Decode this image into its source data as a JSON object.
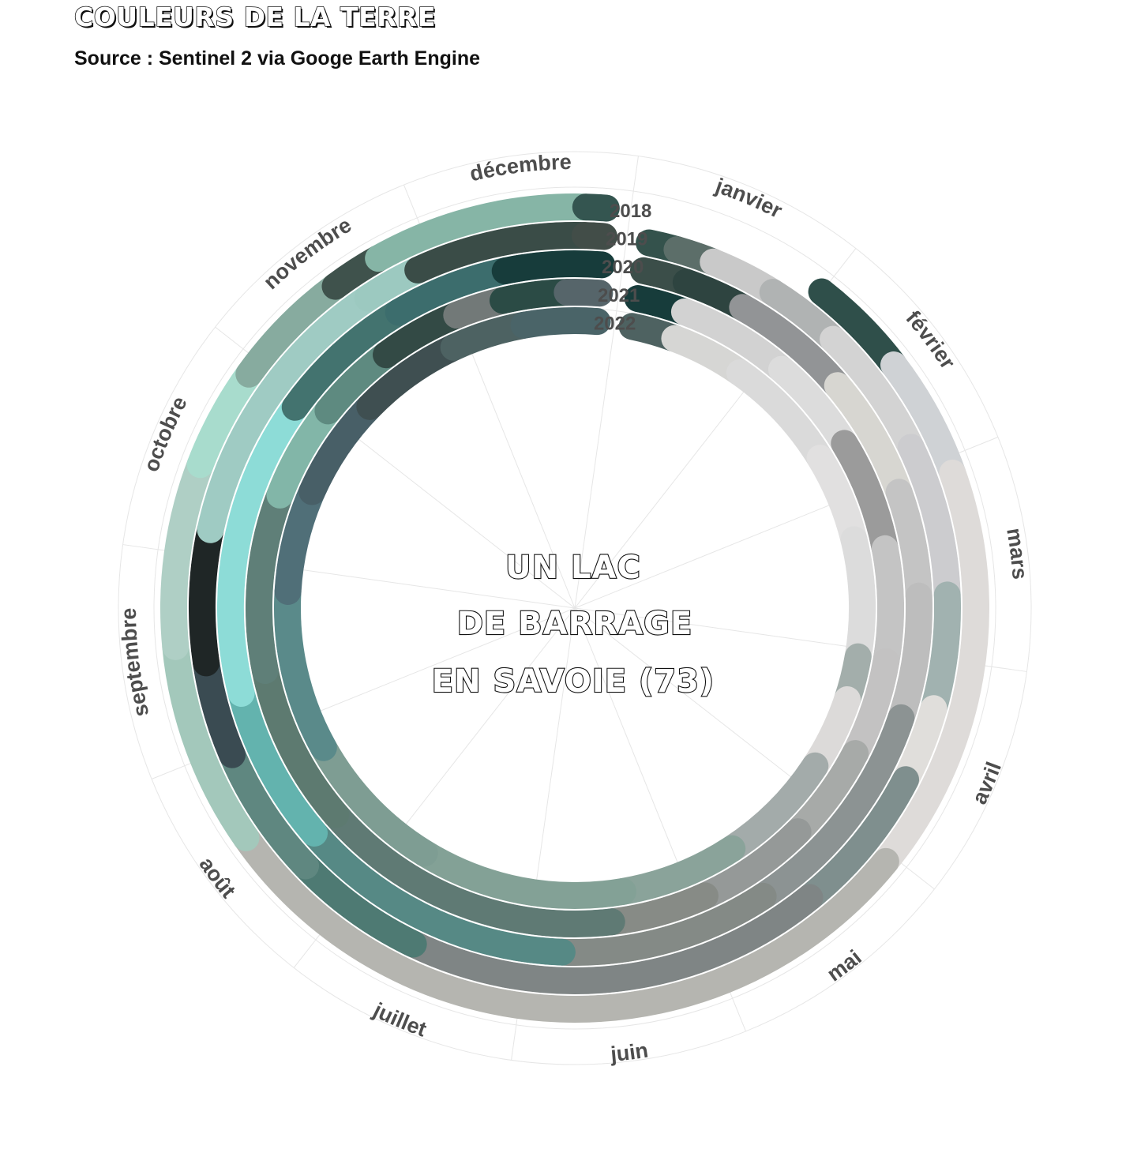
{
  "header": {
    "title": "COULEURS DE LA TERRE",
    "subtitle": "Source : Sentinel 2 via Googe Earth Engine"
  },
  "center_text": [
    "UN LAC",
    "DE BARRAGE",
    "EN SAVOIE (73)"
  ],
  "chart_data": {
    "type": "radial-timeline",
    "months": [
      "janvier",
      "février",
      "mars",
      "avril",
      "mai",
      "juin",
      "juillet",
      "août",
      "septembre",
      "octobre",
      "novembre",
      "décembre"
    ],
    "grid": true,
    "series": [
      {
        "name": "2018",
        "segments": [
          {
            "start": 0.9,
            "end": 1.4,
            "color": "#2f4f4a"
          },
          {
            "start": 1.4,
            "end": 2.0,
            "color": "#cfd2d5"
          },
          {
            "start": 2.0,
            "end": 4.0,
            "color": "#dedbd9"
          },
          {
            "start": 4.0,
            "end": 7.6,
            "color": "#b5b5b0"
          },
          {
            "start": 7.6,
            "end": 8.6,
            "color": "#a3c8bb"
          },
          {
            "start": 8.6,
            "end": 9.5,
            "color": "#afcfc5"
          },
          {
            "start": 9.5,
            "end": 10.0,
            "color": "#a8dccd"
          },
          {
            "start": 10.0,
            "end": 10.6,
            "color": "#87ab9f"
          },
          {
            "start": 10.6,
            "end": 10.85,
            "color": "#3f524c"
          },
          {
            "start": 10.85,
            "end": 11.9,
            "color": "#86b5a6"
          },
          {
            "start": 11.9,
            "end": 12.0,
            "color": "#345550"
          }
        ]
      },
      {
        "name": "2019",
        "segments": [
          {
            "start": 0.0,
            "end": 0.15,
            "color": "#34524c"
          },
          {
            "start": 0.15,
            "end": 0.35,
            "color": "#5c6e69"
          },
          {
            "start": 0.35,
            "end": 0.7,
            "color": "#c9c9c9"
          },
          {
            "start": 0.7,
            "end": 1.1,
            "color": "#b0b3b3"
          },
          {
            "start": 1.1,
            "end": 1.8,
            "color": "#d3d3d3"
          },
          {
            "start": 1.8,
            "end": 2.6,
            "color": "#cccccf"
          },
          {
            "start": 2.6,
            "end": 3.2,
            "color": "#a1b2b0"
          },
          {
            "start": 3.2,
            "end": 3.6,
            "color": "#e0dedb"
          },
          {
            "start": 3.6,
            "end": 4.4,
            "color": "#7f8f8e"
          },
          {
            "start": 4.4,
            "end": 6.6,
            "color": "#7f8585"
          },
          {
            "start": 6.6,
            "end": 7.3,
            "color": "#4e7a73"
          },
          {
            "start": 7.3,
            "end": 8.0,
            "color": "#5f8780"
          },
          {
            "start": 8.0,
            "end": 8.5,
            "color": "#3a4b52"
          },
          {
            "start": 8.5,
            "end": 9.2,
            "color": "#1f2626"
          },
          {
            "start": 9.2,
            "end": 10.7,
            "color": "#9fcbc3"
          },
          {
            "start": 10.7,
            "end": 11.0,
            "color": "#9cc9c0"
          },
          {
            "start": 11.0,
            "end": 11.9,
            "color": "#3a4c47"
          },
          {
            "start": 11.9,
            "end": 12.0,
            "color": "#424d48"
          }
        ]
      },
      {
        "name": "2020",
        "segments": [
          {
            "start": 0.0,
            "end": 0.25,
            "color": "#3b4e49"
          },
          {
            "start": 0.25,
            "end": 0.6,
            "color": "#2e4440"
          },
          {
            "start": 0.6,
            "end": 1.3,
            "color": "#929496"
          },
          {
            "start": 1.3,
            "end": 2.0,
            "color": "#d7d6d1"
          },
          {
            "start": 2.0,
            "end": 2.6,
            "color": "#c4c4c4"
          },
          {
            "start": 2.6,
            "end": 3.3,
            "color": "#bdbdbd"
          },
          {
            "start": 3.3,
            "end": 4.6,
            "color": "#8c9393"
          },
          {
            "start": 4.6,
            "end": 5.8,
            "color": "#848a86"
          },
          {
            "start": 5.8,
            "end": 7.4,
            "color": "#568985"
          },
          {
            "start": 7.4,
            "end": 8.3,
            "color": "#63b3ae"
          },
          {
            "start": 8.3,
            "end": 10.0,
            "color": "#8ddcd7"
          },
          {
            "start": 10.0,
            "end": 10.8,
            "color": "#43736f"
          },
          {
            "start": 10.8,
            "end": 11.45,
            "color": "#3c6d6d"
          },
          {
            "start": 11.45,
            "end": 12.0,
            "color": "#173c3b"
          }
        ]
      },
      {
        "name": "2021",
        "segments": [
          {
            "start": 0.0,
            "end": 0.3,
            "color": "#173c3b"
          },
          {
            "start": 0.3,
            "end": 1.0,
            "color": "#d2d2d2"
          },
          {
            "start": 1.0,
            "end": 1.6,
            "color": "#dcdcdc"
          },
          {
            "start": 1.6,
            "end": 2.3,
            "color": "#9b9b9b"
          },
          {
            "start": 2.3,
            "end": 3.0,
            "color": "#c4c4c4"
          },
          {
            "start": 3.0,
            "end": 3.6,
            "color": "#c3c2c2"
          },
          {
            "start": 3.6,
            "end": 4.2,
            "color": "#a7aaa8"
          },
          {
            "start": 4.2,
            "end": 4.9,
            "color": "#959998"
          },
          {
            "start": 4.9,
            "end": 5.5,
            "color": "#878b86"
          },
          {
            "start": 5.5,
            "end": 7.4,
            "color": "#5f7a74"
          },
          {
            "start": 7.4,
            "end": 8.4,
            "color": "#5d7a70"
          },
          {
            "start": 8.4,
            "end": 9.5,
            "color": "#5f7f78"
          },
          {
            "start": 9.5,
            "end": 10.1,
            "color": "#82b6a8"
          },
          {
            "start": 10.1,
            "end": 10.6,
            "color": "#5e8a80"
          },
          {
            "start": 10.6,
            "end": 11.1,
            "color": "#334a45"
          },
          {
            "start": 11.1,
            "end": 11.4,
            "color": "#727978"
          },
          {
            "start": 11.4,
            "end": 11.8,
            "color": "#2b4b45"
          },
          {
            "start": 11.8,
            "end": 12.0,
            "color": "#56656a"
          }
        ]
      },
      {
        "name": "2022",
        "segments": [
          {
            "start": 0.0,
            "end": 0.3,
            "color": "#4e6261"
          },
          {
            "start": 0.3,
            "end": 0.8,
            "color": "#d6d6d4"
          },
          {
            "start": 0.8,
            "end": 1.6,
            "color": "#dadada"
          },
          {
            "start": 1.6,
            "end": 2.2,
            "color": "#e1e0e0"
          },
          {
            "start": 2.2,
            "end": 3.0,
            "color": "#dcdcdc"
          },
          {
            "start": 3.0,
            "end": 3.3,
            "color": "#a3aeab"
          },
          {
            "start": 3.3,
            "end": 3.8,
            "color": "#dcdad9"
          },
          {
            "start": 3.8,
            "end": 4.6,
            "color": "#a3abaa"
          },
          {
            "start": 4.6,
            "end": 5.4,
            "color": "#8aa39a"
          },
          {
            "start": 5.4,
            "end": 6.8,
            "color": "#83a196"
          },
          {
            "start": 6.8,
            "end": 7.8,
            "color": "#7e9d93"
          },
          {
            "start": 7.8,
            "end": 8.9,
            "color": "#5a8a8a"
          },
          {
            "start": 8.9,
            "end": 9.6,
            "color": "#506f78"
          },
          {
            "start": 9.6,
            "end": 10.3,
            "color": "#485f67"
          },
          {
            "start": 10.3,
            "end": 11.0,
            "color": "#3f4f51"
          },
          {
            "start": 11.0,
            "end": 11.5,
            "color": "#4d6262"
          },
          {
            "start": 11.5,
            "end": 12.0,
            "color": "#4a6468"
          }
        ]
      }
    ]
  }
}
